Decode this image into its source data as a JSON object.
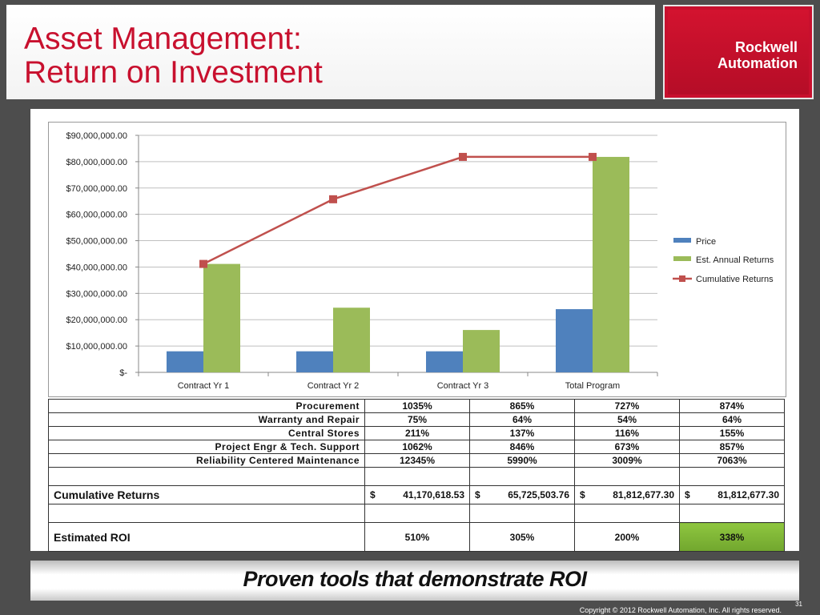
{
  "slide": {
    "title_line1": "Asset Management:",
    "title_line2": "Return on Investment",
    "logo_line1": "Rockwell",
    "logo_line2": "Automation",
    "banner": "Proven tools that demonstrate ROI",
    "copyright": "Copyright © 2012 Rockwell Automation, Inc. All rights reserved.",
    "page_number": "31"
  },
  "colors": {
    "title": "#c8102e",
    "price": "#4f81bd",
    "returns": "#9bbb59",
    "cumulative": "#c0504d",
    "roi_highlight": "#7cb342"
  },
  "chart_data": {
    "type": "bar",
    "categories": [
      "Contract Yr 1",
      "Contract Yr 2",
      "Contract Yr 3",
      "Total Program"
    ],
    "series": [
      {
        "name": "Price",
        "kind": "bar",
        "values": [
          8000000,
          8000000,
          8000000,
          24000000
        ]
      },
      {
        "name": "Est. Annual Returns",
        "kind": "bar",
        "values": [
          41170618.53,
          24554885.23,
          16087173.54,
          81812677.3
        ]
      },
      {
        "name": "Cumulative Returns",
        "kind": "line",
        "values": [
          41170618.53,
          65725503.76,
          81812677.3,
          81812677.3
        ]
      }
    ],
    "yticks": [
      "$90,000,000.00",
      "$80,000,000.00",
      "$70,000,000.00",
      "$60,000,000.00",
      "$50,000,000.00",
      "$40,000,000.00",
      "$30,000,000.00",
      "$20,000,000.00",
      "$10,000,000.00",
      "$-"
    ],
    "ylim": [
      0,
      90000000
    ],
    "legend_position": "right",
    "grid": true
  },
  "table": {
    "rows": [
      {
        "label": "Procurement",
        "values": [
          "1035%",
          "865%",
          "727%",
          "874%"
        ]
      },
      {
        "label": "Warranty and Repair",
        "values": [
          "75%",
          "64%",
          "54%",
          "64%"
        ]
      },
      {
        "label": "Central Stores",
        "values": [
          "211%",
          "137%",
          "116%",
          "155%"
        ]
      },
      {
        "label": "Project Engr & Tech. Support",
        "values": [
          "1062%",
          "846%",
          "673%",
          "857%"
        ]
      },
      {
        "label": "Reliability Centered Maintenance",
        "values": [
          "12345%",
          "5990%",
          "3009%",
          "7063%"
        ]
      }
    ],
    "cumulative": {
      "label": "Cumulative Returns",
      "currency": "$",
      "values": [
        "41,170,618.53",
        "65,725,503.76",
        "81,812,677.30",
        "81,812,677.30"
      ]
    },
    "roi": {
      "label": "Estimated ROI",
      "values": [
        "510%",
        "305%",
        "200%",
        "338%"
      ]
    }
  }
}
